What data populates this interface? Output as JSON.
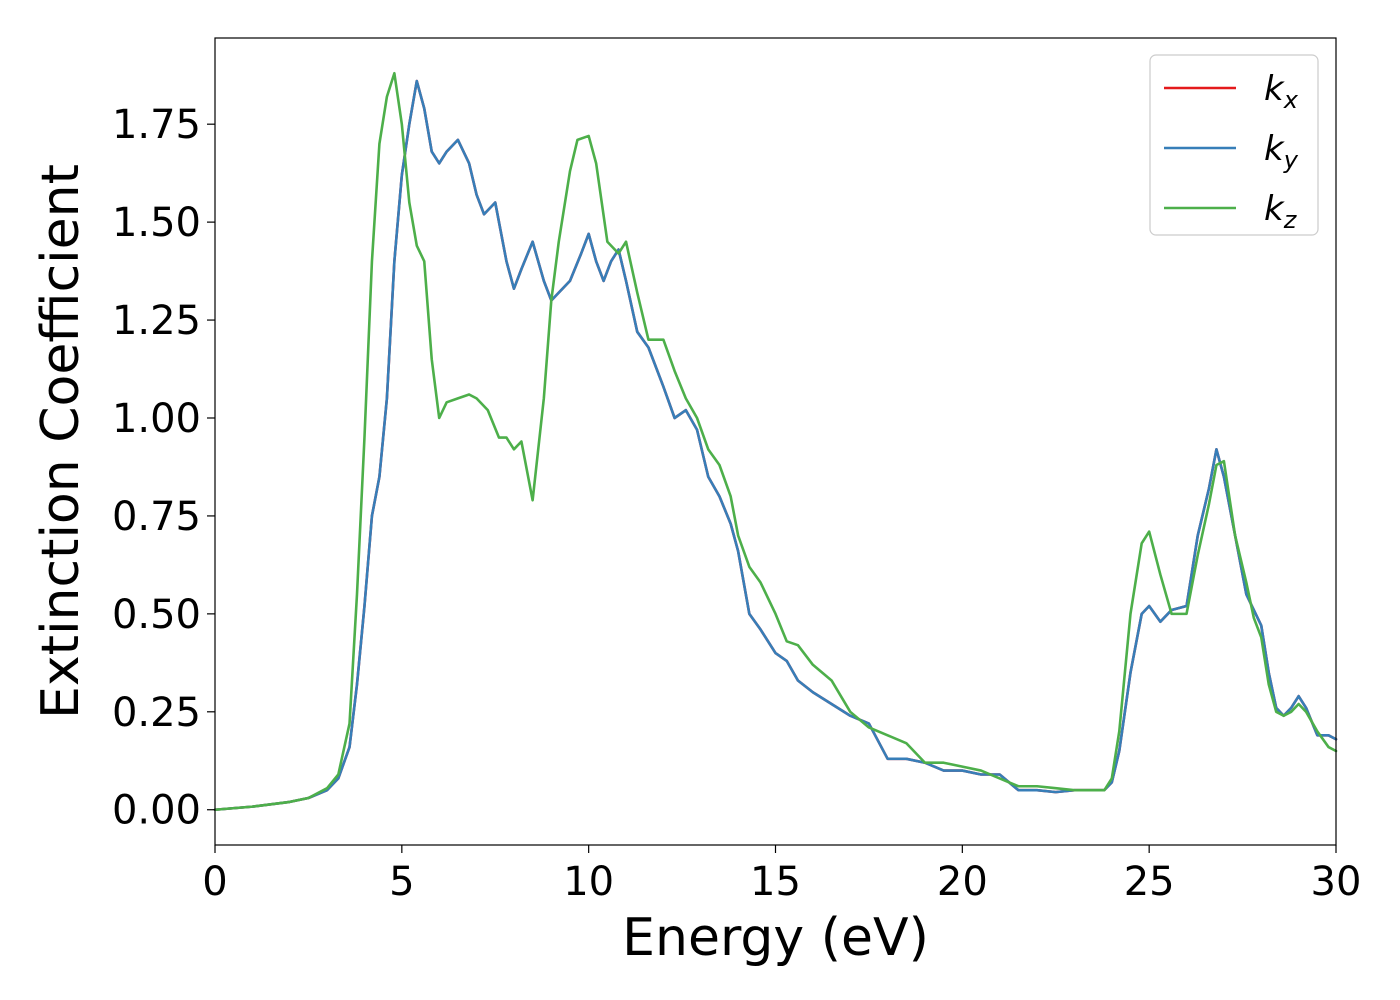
{
  "chart_data": {
    "type": "line",
    "title": "",
    "xlabel": "Energy (eV)",
    "ylabel": "Extinction Coefficient",
    "xlim": [
      0,
      30
    ],
    "ylim": [
      -0.09,
      1.97
    ],
    "xticks": [
      0,
      5,
      10,
      15,
      20,
      25,
      30
    ],
    "yticks": [
      0.0,
      0.25,
      0.5,
      0.75,
      1.0,
      1.25,
      1.5,
      1.75
    ],
    "xtick_labels": [
      "0",
      "5",
      "10",
      "15",
      "20",
      "25",
      "30"
    ],
    "ytick_labels": [
      "0.00",
      "0.25",
      "0.50",
      "0.75",
      "1.00",
      "1.25",
      "1.50",
      "1.75"
    ],
    "grid": false,
    "legend_position": "top-right",
    "series": [
      {
        "name": "k",
        "subscript": "x",
        "color": "#e41a1c",
        "x": [
          0,
          1,
          2,
          2.5,
          3,
          3.3,
          3.6,
          3.8,
          4.0,
          4.2,
          4.4,
          4.6,
          4.8,
          5.0,
          5.2,
          5.4,
          5.6,
          5.8,
          6.0,
          6.2,
          6.5,
          6.8,
          7.0,
          7.2,
          7.5,
          7.8,
          8.0,
          8.2,
          8.5,
          8.8,
          9.0,
          9.2,
          9.5,
          9.8,
          10.0,
          10.2,
          10.4,
          10.6,
          10.8,
          11.0,
          11.3,
          11.6,
          12.0,
          12.3,
          12.6,
          12.9,
          13.2,
          13.5,
          13.8,
          14.0,
          14.3,
          14.6,
          15.0,
          15.3,
          15.6,
          16.0,
          16.5,
          17.0,
          17.5,
          18.0,
          18.5,
          19.0,
          19.5,
          20.0,
          20.5,
          21.0,
          21.5,
          22.0,
          22.5,
          23.0,
          23.5,
          23.8,
          24.0,
          24.2,
          24.5,
          24.8,
          25.0,
          25.3,
          25.6,
          26.0,
          26.3,
          26.6,
          26.8,
          27.0,
          27.3,
          27.6,
          27.8,
          28.0,
          28.2,
          28.4,
          28.6,
          28.8,
          29.0,
          29.2,
          29.5,
          29.8,
          30.0
        ],
        "y": [
          0.0,
          0.008,
          0.02,
          0.03,
          0.05,
          0.08,
          0.16,
          0.32,
          0.52,
          0.75,
          0.85,
          1.05,
          1.4,
          1.62,
          1.75,
          1.86,
          1.79,
          1.68,
          1.65,
          1.68,
          1.71,
          1.65,
          1.57,
          1.52,
          1.55,
          1.4,
          1.33,
          1.38,
          1.45,
          1.35,
          1.3,
          1.32,
          1.35,
          1.42,
          1.47,
          1.4,
          1.35,
          1.4,
          1.43,
          1.35,
          1.22,
          1.18,
          1.08,
          1.0,
          1.02,
          0.97,
          0.85,
          0.8,
          0.73,
          0.66,
          0.5,
          0.46,
          0.4,
          0.38,
          0.33,
          0.3,
          0.27,
          0.24,
          0.22,
          0.13,
          0.13,
          0.12,
          0.1,
          0.1,
          0.09,
          0.09,
          0.05,
          0.05,
          0.045,
          0.05,
          0.05,
          0.05,
          0.07,
          0.15,
          0.35,
          0.5,
          0.52,
          0.48,
          0.51,
          0.52,
          0.7,
          0.82,
          0.92,
          0.85,
          0.7,
          0.55,
          0.51,
          0.47,
          0.35,
          0.26,
          0.24,
          0.26,
          0.29,
          0.26,
          0.19,
          0.19,
          0.18
        ]
      },
      {
        "name": "k",
        "subscript": "y",
        "color": "#377eb8",
        "x": [
          0,
          1,
          2,
          2.5,
          3,
          3.3,
          3.6,
          3.8,
          4.0,
          4.2,
          4.4,
          4.6,
          4.8,
          5.0,
          5.2,
          5.4,
          5.6,
          5.8,
          6.0,
          6.2,
          6.5,
          6.8,
          7.0,
          7.2,
          7.5,
          7.8,
          8.0,
          8.2,
          8.5,
          8.8,
          9.0,
          9.2,
          9.5,
          9.8,
          10.0,
          10.2,
          10.4,
          10.6,
          10.8,
          11.0,
          11.3,
          11.6,
          12.0,
          12.3,
          12.6,
          12.9,
          13.2,
          13.5,
          13.8,
          14.0,
          14.3,
          14.6,
          15.0,
          15.3,
          15.6,
          16.0,
          16.5,
          17.0,
          17.5,
          18.0,
          18.5,
          19.0,
          19.5,
          20.0,
          20.5,
          21.0,
          21.5,
          22.0,
          22.5,
          23.0,
          23.5,
          23.8,
          24.0,
          24.2,
          24.5,
          24.8,
          25.0,
          25.3,
          25.6,
          26.0,
          26.3,
          26.6,
          26.8,
          27.0,
          27.3,
          27.6,
          27.8,
          28.0,
          28.2,
          28.4,
          28.6,
          28.8,
          29.0,
          29.2,
          29.5,
          29.8,
          30.0
        ],
        "y": [
          0.0,
          0.008,
          0.02,
          0.03,
          0.05,
          0.08,
          0.16,
          0.32,
          0.52,
          0.75,
          0.85,
          1.05,
          1.4,
          1.62,
          1.75,
          1.86,
          1.79,
          1.68,
          1.65,
          1.68,
          1.71,
          1.65,
          1.57,
          1.52,
          1.55,
          1.4,
          1.33,
          1.38,
          1.45,
          1.35,
          1.3,
          1.32,
          1.35,
          1.42,
          1.47,
          1.4,
          1.35,
          1.4,
          1.43,
          1.35,
          1.22,
          1.18,
          1.08,
          1.0,
          1.02,
          0.97,
          0.85,
          0.8,
          0.73,
          0.66,
          0.5,
          0.46,
          0.4,
          0.38,
          0.33,
          0.3,
          0.27,
          0.24,
          0.22,
          0.13,
          0.13,
          0.12,
          0.1,
          0.1,
          0.09,
          0.09,
          0.05,
          0.05,
          0.045,
          0.05,
          0.05,
          0.05,
          0.07,
          0.15,
          0.35,
          0.5,
          0.52,
          0.48,
          0.51,
          0.52,
          0.7,
          0.82,
          0.92,
          0.85,
          0.7,
          0.55,
          0.51,
          0.47,
          0.35,
          0.26,
          0.24,
          0.26,
          0.29,
          0.26,
          0.19,
          0.19,
          0.18
        ]
      },
      {
        "name": "k",
        "subscript": "z",
        "color": "#4daf4a",
        "x": [
          0,
          1,
          2,
          2.5,
          3,
          3.3,
          3.6,
          3.8,
          4.0,
          4.2,
          4.4,
          4.6,
          4.8,
          5.0,
          5.2,
          5.4,
          5.6,
          5.8,
          6.0,
          6.2,
          6.5,
          6.8,
          7.0,
          7.3,
          7.6,
          7.8,
          8.0,
          8.2,
          8.5,
          8.8,
          9.0,
          9.2,
          9.5,
          9.7,
          10.0,
          10.2,
          10.5,
          10.8,
          11.0,
          11.3,
          11.6,
          12.0,
          12.3,
          12.6,
          12.9,
          13.2,
          13.5,
          13.8,
          14.0,
          14.3,
          14.6,
          15.0,
          15.3,
          15.6,
          16.0,
          16.5,
          17.0,
          17.5,
          18.0,
          18.5,
          19.0,
          19.5,
          20.0,
          20.5,
          21.0,
          21.5,
          22.0,
          22.5,
          23.0,
          23.5,
          23.8,
          24.0,
          24.2,
          24.5,
          24.8,
          25.0,
          25.3,
          25.6,
          26.0,
          26.3,
          26.6,
          26.8,
          27.0,
          27.3,
          27.6,
          27.8,
          28.0,
          28.2,
          28.4,
          28.6,
          28.8,
          29.0,
          29.2,
          29.5,
          29.8,
          30.0
        ],
        "y": [
          0.0,
          0.008,
          0.02,
          0.03,
          0.055,
          0.09,
          0.22,
          0.55,
          0.95,
          1.4,
          1.7,
          1.82,
          1.88,
          1.75,
          1.55,
          1.44,
          1.4,
          1.15,
          1.0,
          1.04,
          1.05,
          1.06,
          1.05,
          1.02,
          0.95,
          0.95,
          0.92,
          0.94,
          0.79,
          1.05,
          1.3,
          1.45,
          1.63,
          1.71,
          1.72,
          1.65,
          1.45,
          1.42,
          1.45,
          1.32,
          1.2,
          1.2,
          1.12,
          1.05,
          1.0,
          0.92,
          0.88,
          0.8,
          0.7,
          0.62,
          0.58,
          0.5,
          0.43,
          0.42,
          0.37,
          0.33,
          0.25,
          0.21,
          0.19,
          0.17,
          0.12,
          0.12,
          0.11,
          0.1,
          0.08,
          0.06,
          0.06,
          0.055,
          0.05,
          0.05,
          0.05,
          0.08,
          0.2,
          0.5,
          0.68,
          0.71,
          0.6,
          0.5,
          0.5,
          0.65,
          0.78,
          0.88,
          0.89,
          0.7,
          0.58,
          0.49,
          0.44,
          0.32,
          0.25,
          0.24,
          0.25,
          0.27,
          0.25,
          0.2,
          0.16,
          0.15
        ]
      }
    ]
  }
}
